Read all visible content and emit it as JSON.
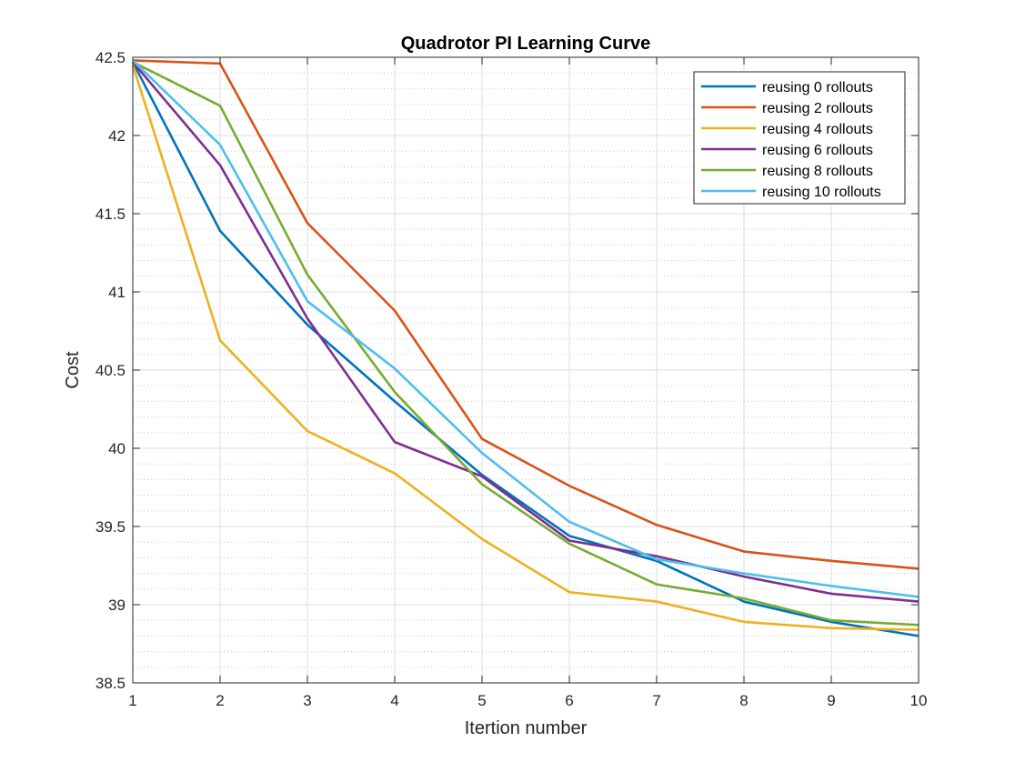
{
  "chart_data": {
    "type": "line",
    "title": "Quadrotor PI Learning Curve",
    "xlabel": "Itertion number",
    "ylabel": "Cost",
    "x": [
      1,
      2,
      3,
      4,
      5,
      6,
      7,
      8,
      9,
      10
    ],
    "xlim": [
      1,
      10
    ],
    "ylim": [
      38.5,
      42.5
    ],
    "xticks": [
      "1",
      "2",
      "3",
      "4",
      "5",
      "6",
      "7",
      "8",
      "9",
      "10"
    ],
    "yticks": [
      "38.5",
      "39",
      "39.5",
      "40",
      "40.5",
      "41",
      "41.5",
      "42",
      "42.5"
    ],
    "grid": "major and minor",
    "legend_position": "top-right",
    "series": [
      {
        "name": "reusing 0 rollouts",
        "color": "#0072BD",
        "values": [
          42.47,
          41.39,
          40.79,
          40.3,
          39.83,
          39.44,
          39.28,
          39.02,
          38.89,
          38.8
        ]
      },
      {
        "name": "reusing 2 rollouts",
        "color": "#D95319",
        "values": [
          42.48,
          42.46,
          41.44,
          40.88,
          40.06,
          39.76,
          39.51,
          39.34,
          39.28,
          39.23
        ]
      },
      {
        "name": "reusing 4 rollouts",
        "color": "#EDB120",
        "values": [
          42.45,
          40.69,
          40.11,
          39.84,
          39.42,
          39.08,
          39.02,
          38.89,
          38.85,
          38.84
        ]
      },
      {
        "name": "reusing 6 rollouts",
        "color": "#7E2F8E",
        "values": [
          42.47,
          41.81,
          40.83,
          40.04,
          39.82,
          39.41,
          39.31,
          39.18,
          39.07,
          39.02
        ]
      },
      {
        "name": "reusing 8 rollouts",
        "color": "#77AC30",
        "values": [
          42.47,
          42.19,
          41.11,
          40.36,
          39.77,
          39.39,
          39.13,
          39.04,
          38.9,
          38.87
        ]
      },
      {
        "name": "reusing 10 rollouts",
        "color": "#4DBEEE",
        "values": [
          42.48,
          41.94,
          40.94,
          40.51,
          39.97,
          39.53,
          39.29,
          39.2,
          39.12,
          39.05
        ]
      }
    ]
  }
}
